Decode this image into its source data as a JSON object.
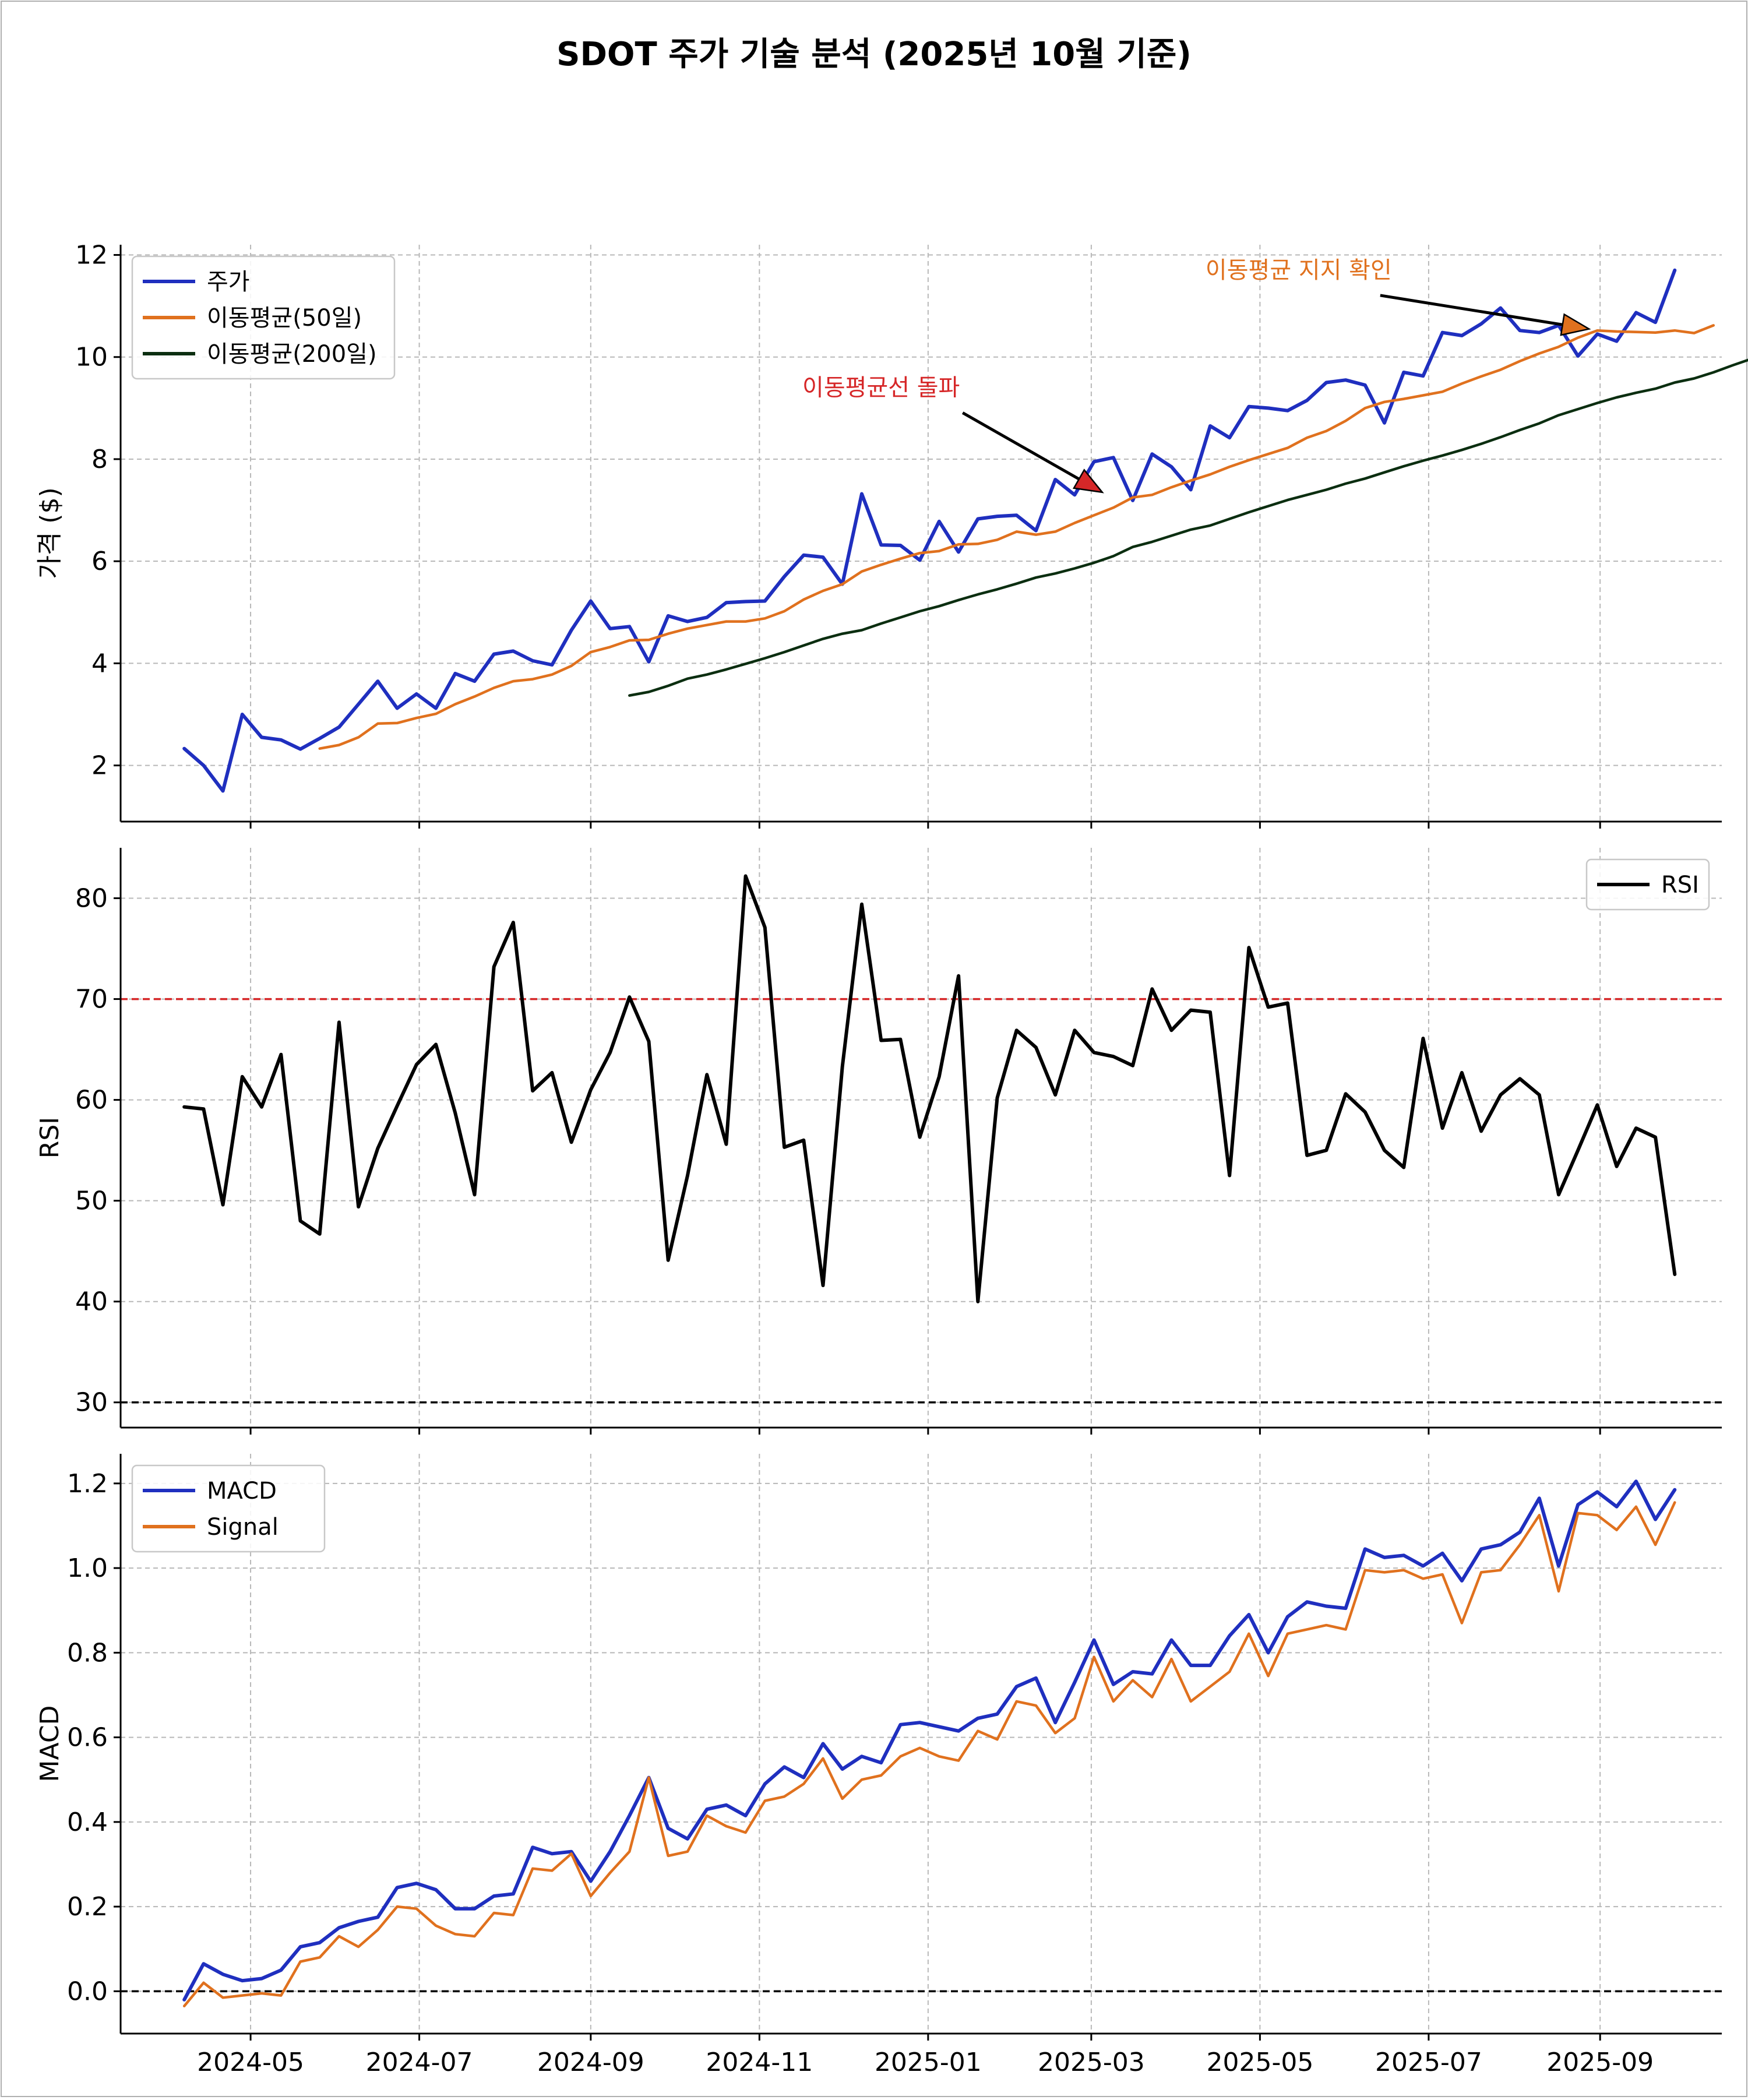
{
  "title": "SDOT 주가 기술 분석 (2025년 10월 기준)",
  "colors": {
    "price": "#1f2fbf",
    "ma50": "#e0711e",
    "ma200": "#0b2e10",
    "rsi": "#000000",
    "macd": "#1f2fbf",
    "signal": "#e0711e",
    "overbought": "#d62728",
    "oversold": "#000000",
    "annotation_red": "#d62728",
    "annotation_orange": "#e0711e"
  },
  "chart_data": [
    {
      "type": "line",
      "panel": "price",
      "ylabel": "가격 ($)",
      "ylim": [
        0.9,
        12.2
      ],
      "yticks": [
        "2",
        "4",
        "6",
        "8",
        "10",
        "12"
      ],
      "ytick_values": [
        2,
        4,
        6,
        8,
        10,
        12
      ],
      "grid": true,
      "legend_position": "upper-left",
      "x_start": "2024-04-07",
      "x_step_days": 7,
      "xlim": [
        "2024-03-15",
        "2025-10-15"
      ],
      "series": [
        {
          "name": "주가",
          "key": "price",
          "values": [
            2.33,
            2.0,
            1.5,
            3.0,
            2.55,
            2.5,
            2.32,
            2.53,
            2.75,
            3.2,
            3.65,
            3.12,
            3.4,
            3.12,
            3.8,
            3.65,
            4.18,
            4.24,
            4.05,
            3.97,
            4.65,
            5.22,
            4.68,
            4.72,
            4.03,
            4.93,
            4.82,
            4.9,
            5.19,
            5.21,
            5.22,
            5.7,
            6.12,
            6.08,
            5.55,
            7.32,
            6.32,
            6.31,
            6.02,
            6.78,
            6.18,
            6.83,
            6.88,
            6.9,
            6.6,
            7.6,
            7.3,
            7.95,
            8.03,
            7.19,
            8.1,
            7.85,
            7.4,
            8.65,
            8.42,
            9.03,
            9.0,
            8.95,
            9.15,
            9.5,
            9.55,
            9.45,
            8.71,
            9.7,
            9.63,
            10.48,
            10.42,
            10.65,
            10.96,
            10.52,
            10.48,
            10.62,
            10.02,
            10.45,
            10.31,
            10.87,
            10.68,
            11.7
          ]
        },
        {
          "name": "이동평균(50일)",
          "key": "ma50",
          "start_index": 7,
          "values": [
            2.33,
            2.4,
            2.55,
            2.82,
            2.83,
            2.93,
            3.01,
            3.2,
            3.35,
            3.52,
            3.65,
            3.69,
            3.78,
            3.95,
            4.22,
            4.32,
            4.45,
            4.46,
            4.58,
            4.68,
            4.75,
            4.82,
            4.82,
            4.88,
            5.02,
            5.25,
            5.42,
            5.55,
            5.8,
            5.93,
            6.05,
            6.16,
            6.2,
            6.33,
            6.34,
            6.42,
            6.58,
            6.52,
            6.58,
            6.75,
            6.9,
            7.05,
            7.25,
            7.3,
            7.45,
            7.58,
            7.7,
            7.85,
            7.98,
            8.1,
            8.22,
            8.42,
            8.55,
            8.75,
            9.0,
            9.12,
            9.18,
            9.25,
            9.32,
            9.48,
            9.62,
            9.75,
            9.92,
            10.07,
            10.2,
            10.38,
            10.52,
            10.5,
            10.49,
            10.48,
            10.52,
            10.47,
            10.62
          ]
        },
        {
          "name": "이동평균(200일)",
          "key": "ma200",
          "start_index": 23,
          "values": [
            3.37,
            3.44,
            3.56,
            3.7,
            3.78,
            3.88,
            3.99,
            4.1,
            4.22,
            4.35,
            4.48,
            4.58,
            4.65,
            4.78,
            4.9,
            5.02,
            5.12,
            5.24,
            5.35,
            5.45,
            5.56,
            5.68,
            5.76,
            5.86,
            5.97,
            6.1,
            6.28,
            6.38,
            6.5,
            6.62,
            6.7,
            6.83,
            6.96,
            7.08,
            7.2,
            7.3,
            7.4,
            7.52,
            7.62,
            7.74,
            7.86,
            7.97,
            8.07,
            8.18,
            8.3,
            8.43,
            8.57,
            8.7,
            8.86,
            8.98,
            9.1,
            9.21,
            9.3,
            9.38,
            9.5,
            9.58,
            9.7,
            9.84,
            9.97
          ]
        }
      ],
      "annotations": [
        {
          "key": "breakout",
          "text": "이동평균선 돌파",
          "color_key": "annotation_red",
          "arrow_color_key": "annotation_red",
          "xy_date": "2025-03-05",
          "xy_value": 7.35,
          "text_date": "2024-12-15",
          "text_value": 9.25
        },
        {
          "key": "test",
          "text": "이동평균 지지 확인",
          "color_key": "annotation_orange",
          "arrow_color_key": "annotation_orange",
          "xy_date": "2025-08-28",
          "xy_value": 10.55,
          "text_date": "2025-05-15",
          "text_value": 11.55
        }
      ]
    },
    {
      "type": "line",
      "panel": "rsi",
      "ylabel": "RSI",
      "ylim": [
        27.5,
        85
      ],
      "yticks": [
        "30",
        "40",
        "50",
        "60",
        "70",
        "80"
      ],
      "ytick_values": [
        30,
        40,
        50,
        60,
        70,
        80
      ],
      "grid": true,
      "legend_position": "upper-right",
      "reference_lines": [
        {
          "value": 70,
          "color_key": "overbought"
        },
        {
          "value": 30,
          "color_key": "oversold"
        }
      ],
      "series": [
        {
          "name": "RSI",
          "key": "rsi",
          "values": [
            59.3,
            59.1,
            49.6,
            62.3,
            59.3,
            64.5,
            48.0,
            46.7,
            67.7,
            49.4,
            55.2,
            59.4,
            63.5,
            65.5,
            58.7,
            50.6,
            73.2,
            77.6,
            60.9,
            62.7,
            55.8,
            61.0,
            64.7,
            70.2,
            65.8,
            44.1,
            52.5,
            62.5,
            55.6,
            82.2,
            77.1,
            55.3,
            56.0,
            41.6,
            63.3,
            79.4,
            65.9,
            66.0,
            56.3,
            62.3,
            72.3,
            40.0,
            60.2,
            66.9,
            65.2,
            60.5,
            66.9,
            64.7,
            64.3,
            63.4,
            71.0,
            66.9,
            68.9,
            68.7,
            52.5,
            75.1,
            69.2,
            69.6,
            54.5,
            55.0,
            60.6,
            58.8,
            55.0,
            53.3,
            66.1,
            57.2,
            62.7,
            56.9,
            60.5,
            62.1,
            60.5,
            50.6,
            55.0,
            59.5,
            53.4,
            57.2,
            56.3,
            42.7
          ]
        }
      ]
    },
    {
      "type": "line",
      "panel": "macd",
      "ylabel": "MACD",
      "ylim": [
        -0.1,
        1.27
      ],
      "yticks": [
        "0.0",
        "0.2",
        "0.4",
        "0.6",
        "0.8",
        "1.0",
        "1.2"
      ],
      "ytick_values": [
        0,
        0.2,
        0.4,
        0.6,
        0.8,
        1.0,
        1.2
      ],
      "grid": true,
      "legend_position": "upper-left",
      "reference_lines": [
        {
          "value": 0,
          "color_key": "oversold"
        }
      ],
      "series": [
        {
          "name": "MACD",
          "key": "macd",
          "values": [
            -0.02,
            0.065,
            0.04,
            0.025,
            0.03,
            0.05,
            0.105,
            0.115,
            0.15,
            0.165,
            0.175,
            0.245,
            0.255,
            0.24,
            0.195,
            0.195,
            0.225,
            0.23,
            0.34,
            0.325,
            0.33,
            0.26,
            0.33,
            0.415,
            0.505,
            0.385,
            0.36,
            0.43,
            0.44,
            0.415,
            0.49,
            0.53,
            0.505,
            0.585,
            0.525,
            0.555,
            0.54,
            0.63,
            0.635,
            0.625,
            0.615,
            0.645,
            0.655,
            0.72,
            0.74,
            0.635,
            0.73,
            0.83,
            0.725,
            0.755,
            0.75,
            0.83,
            0.77,
            0.77,
            0.84,
            0.89,
            0.8,
            0.885,
            0.92,
            0.91,
            0.905,
            1.045,
            1.025,
            1.03,
            1.005,
            1.035,
            0.97,
            1.045,
            1.055,
            1.085,
            1.165,
            1.005,
            1.15,
            1.18,
            1.145,
            1.205,
            1.115,
            1.185
          ]
        },
        {
          "name": "Signal",
          "key": "signal",
          "values": [
            -0.035,
            0.02,
            -0.015,
            -0.01,
            -0.005,
            -0.01,
            0.07,
            0.08,
            0.13,
            0.105,
            0.145,
            0.2,
            0.195,
            0.155,
            0.135,
            0.13,
            0.185,
            0.18,
            0.29,
            0.285,
            0.325,
            0.225,
            0.28,
            0.33,
            0.505,
            0.32,
            0.33,
            0.415,
            0.39,
            0.375,
            0.45,
            0.46,
            0.49,
            0.55,
            0.455,
            0.5,
            0.51,
            0.555,
            0.575,
            0.555,
            0.545,
            0.615,
            0.595,
            0.685,
            0.675,
            0.61,
            0.645,
            0.79,
            0.685,
            0.735,
            0.695,
            0.785,
            0.685,
            0.72,
            0.755,
            0.845,
            0.745,
            0.845,
            0.855,
            0.865,
            0.855,
            0.995,
            0.99,
            0.995,
            0.975,
            0.985,
            0.87,
            0.99,
            0.995,
            1.055,
            1.125,
            0.945,
            1.13,
            1.125,
            1.09,
            1.145,
            1.055,
            1.155
          ]
        }
      ]
    }
  ],
  "x_axis": {
    "ticks": [
      "2024-05",
      "2024-07",
      "2024-09",
      "2024-11",
      "2025-01",
      "2025-03",
      "2025-05",
      "2025-07",
      "2025-09"
    ],
    "tick_dates": [
      "2024-05-01",
      "2024-07-01",
      "2024-09-01",
      "2024-11-01",
      "2025-01-01",
      "2025-03-01",
      "2025-05-01",
      "2025-07-01",
      "2025-09-01"
    ]
  }
}
